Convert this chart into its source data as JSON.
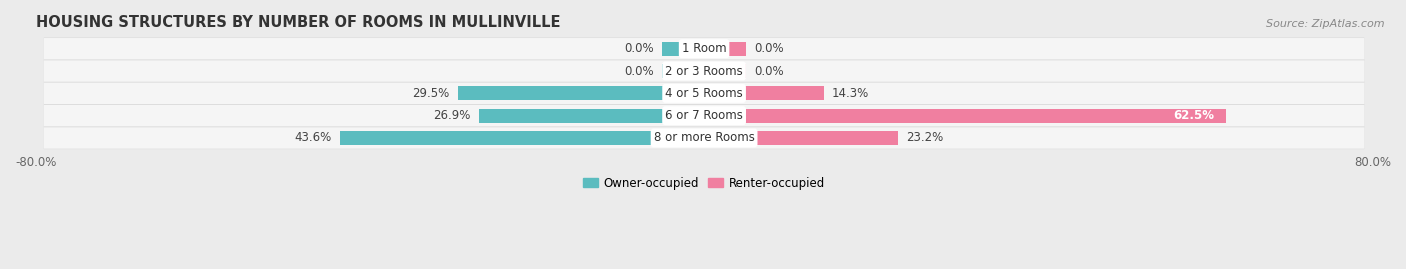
{
  "title": "HOUSING STRUCTURES BY NUMBER OF ROOMS IN MULLINVILLE",
  "source": "Source: ZipAtlas.com",
  "categories": [
    "1 Room",
    "2 or 3 Rooms",
    "4 or 5 Rooms",
    "6 or 7 Rooms",
    "8 or more Rooms"
  ],
  "owner_values": [
    0.0,
    0.0,
    29.5,
    26.9,
    43.6
  ],
  "renter_values": [
    0.0,
    0.0,
    14.3,
    62.5,
    23.2
  ],
  "owner_color": "#5bbcbf",
  "renter_color": "#f07fa0",
  "bg_color": "#ebebeb",
  "row_bg_color": "#f5f5f5",
  "row_shadow_color": "#d8d8d8",
  "xlim": [
    -80,
    80
  ],
  "title_fontsize": 10.5,
  "source_fontsize": 8,
  "label_fontsize": 8.5,
  "bar_height": 0.62,
  "legend_labels": [
    "Owner-occupied",
    "Renter-occupied"
  ],
  "small_owner_value": 5.0,
  "small_renter_value": 5.0
}
